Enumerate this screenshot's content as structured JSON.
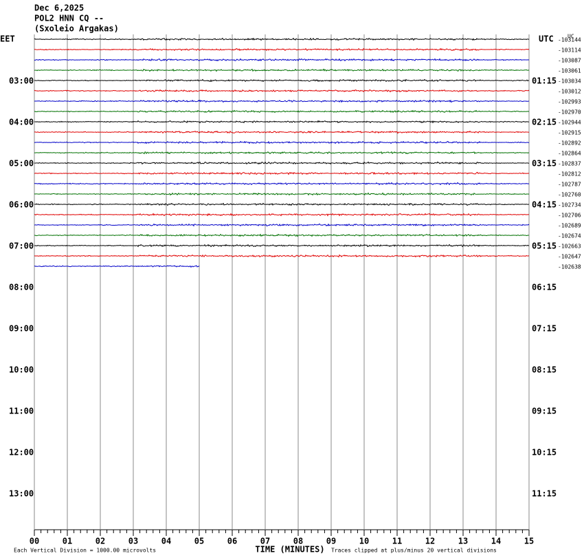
{
  "chart_data": {
    "type": "helicorder",
    "title_lines": [
      "Dec 6,2025",
      "POL2 HNN CQ --",
      "(Sxoleio Argakas)"
    ],
    "left_zone": "EET",
    "right_zone": "UTC",
    "corner_label": "UC",
    "left_hours": [
      "03:00",
      "04:00",
      "05:00",
      "06:00",
      "07:00",
      "08:00",
      "09:00",
      "10:00",
      "11:00",
      "12:00",
      "13:00"
    ],
    "right_hours": [
      "01:15",
      "02:15",
      "03:15",
      "04:15",
      "05:15",
      "06:15",
      "07:15",
      "08:15",
      "09:15",
      "10:15",
      "11:15"
    ],
    "colors": [
      "#000000",
      "#e00000",
      "#0000c8",
      "#007000"
    ],
    "traces": [
      {
        "offset": -103144,
        "end": 15
      },
      {
        "offset": -103114,
        "end": 15
      },
      {
        "offset": -103087,
        "end": 15
      },
      {
        "offset": -103061,
        "end": 15
      },
      {
        "offset": -103034,
        "end": 15
      },
      {
        "offset": -103012,
        "end": 15
      },
      {
        "offset": -102993,
        "end": 15
      },
      {
        "offset": -102970,
        "end": 15
      },
      {
        "offset": -102944,
        "end": 15
      },
      {
        "offset": -102915,
        "end": 15
      },
      {
        "offset": -102892,
        "end": 15
      },
      {
        "offset": -102864,
        "end": 15
      },
      {
        "offset": -102837,
        "end": 15
      },
      {
        "offset": -102812,
        "end": 15
      },
      {
        "offset": -102787,
        "end": 15
      },
      {
        "offset": -102760,
        "end": 15
      },
      {
        "offset": -102734,
        "end": 15
      },
      {
        "offset": -102706,
        "end": 15
      },
      {
        "offset": -102689,
        "end": 15
      },
      {
        "offset": -102674,
        "end": 15
      },
      {
        "offset": -102663,
        "end": 15
      },
      {
        "offset": -102647,
        "end": 15
      },
      {
        "offset": -102638,
        "end": 5
      }
    ],
    "xlim": [
      0,
      15
    ],
    "xticks": [
      {
        "value": 0,
        "label": "00"
      },
      {
        "value": 1,
        "label": "01"
      },
      {
        "value": 2,
        "label": "02"
      },
      {
        "value": 3,
        "label": "03"
      },
      {
        "value": 4,
        "label": "04"
      },
      {
        "value": 5,
        "label": "05"
      },
      {
        "value": 6,
        "label": "06"
      },
      {
        "value": 7,
        "label": "07"
      },
      {
        "value": 8,
        "label": "08"
      },
      {
        "value": 9,
        "label": "09"
      },
      10,
      11,
      12,
      13,
      14,
      15
    ],
    "xlabel": "TIME (MINUTES)",
    "scale_note": "Each Vertical Division = 1000.00 microvolts",
    "clip_note": "Traces clipped at plus/minus 20 vertical divisions"
  }
}
